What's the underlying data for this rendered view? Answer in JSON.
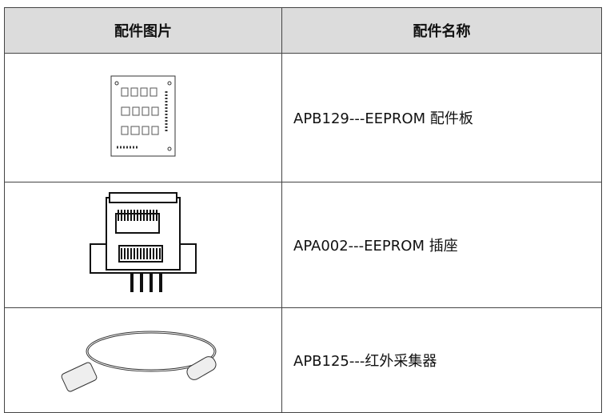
{
  "table": {
    "header": [
      "配件图片",
      "配件名称"
    ],
    "rows": [
      {
        "name": "APB129---EEPROM 配件板"
      },
      {
        "name": "APA002---EEPROM 插座"
      },
      {
        "name": "APB125---红外采集器"
      }
    ]
  }
}
